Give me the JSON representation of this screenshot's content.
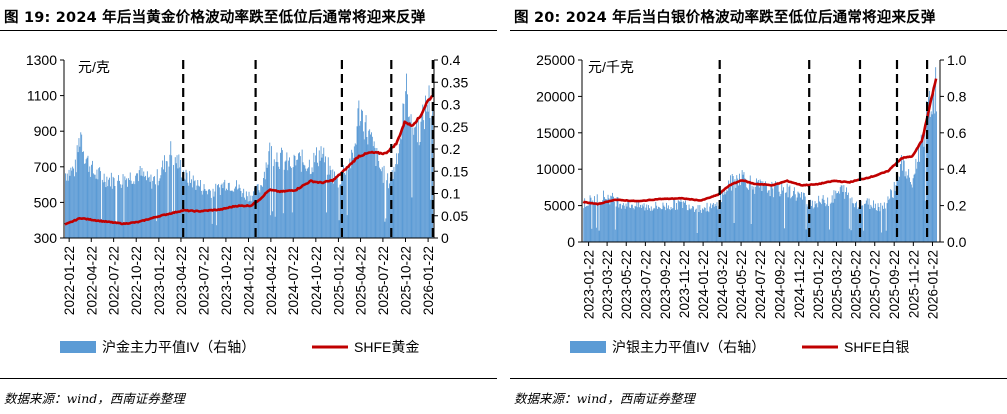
{
  "figures": [
    {
      "title": "图 19: 2024 年后当黄金价格波动率跌至低位后通常将迎来反弹",
      "source": "数据来源：wind，西南证券整理",
      "unit": "元/克",
      "legend": [
        "沪金主力平值IV（右轴）",
        "SHFE黄金"
      ],
      "colors": {
        "bar": "#5b9bd5",
        "line": "#c00000",
        "dash": "#000000"
      }
    },
    {
      "title": "图 20: 2024 年后当白银价格波动率跌至低位后通常将迎来反弹",
      "source": "数据来源：wind，西南证券整理",
      "unit": "元/千克",
      "legend": [
        "沪银主力平值IV（右轴）",
        "SHFE白银"
      ],
      "colors": {
        "bar": "#5b9bd5",
        "line": "#c00000",
        "dash": "#000000"
      }
    }
  ],
  "chart_data": [
    {
      "type": "bar+line",
      "title": "图 19: 2024 年后当黄金价格波动率跌至低位后通常将迎来反弹",
      "ylabel_left": "元/克",
      "ylim_left": [
        300,
        1300
      ],
      "yticks_left": [
        "300",
        "500",
        "700",
        "900",
        "1100",
        "1300"
      ],
      "ylim_right": [
        0,
        0.4
      ],
      "yticks_right": [
        "0",
        "0.05",
        "0.1",
        "0.15",
        "0.2",
        "0.25",
        "0.3",
        "0.35",
        "0.4"
      ],
      "date_range": [
        "2022-01-01",
        "2026-02-15"
      ],
      "xticks": [
        "2022-01-22",
        "2022-04-22",
        "2022-07-22",
        "2022-10-22",
        "2023-01-22",
        "2023-04-22",
        "2023-07-22",
        "2023-10-22",
        "2024-01-22",
        "2024-04-22",
        "2024-07-22",
        "2024-10-22",
        "2025-01-22",
        "2025-04-22",
        "2025-07-22",
        "2025-10-22",
        "2026-01-22"
      ],
      "series": [
        {
          "name": "沪金主力平值IV（右轴）",
          "type": "bar",
          "axis": "right",
          "points": [
            [
              "2022-01-05",
              0.15
            ],
            [
              "2022-02-15",
              0.16
            ],
            [
              "2022-03-08",
              0.25
            ],
            [
              "2022-03-25",
              0.19
            ],
            [
              "2022-05-01",
              0.15
            ],
            [
              "2022-06-15",
              0.14
            ],
            [
              "2022-08-01",
              0.13
            ],
            [
              "2022-09-15",
              0.14
            ],
            [
              "2022-11-01",
              0.15
            ],
            [
              "2022-12-15",
              0.13
            ],
            [
              "2023-01-15",
              0.14
            ],
            [
              "2023-03-10",
              0.2
            ],
            [
              "2023-04-15",
              0.17
            ],
            [
              "2023-05-10",
              0.14
            ],
            [
              "2023-06-15",
              0.13
            ],
            [
              "2023-08-01",
              0.11
            ],
            [
              "2023-09-15",
              0.11
            ],
            [
              "2023-10-20",
              0.13
            ],
            [
              "2023-12-01",
              0.12
            ],
            [
              "2024-01-10",
              0.1
            ],
            [
              "2024-02-10",
              0.1
            ],
            [
              "2024-03-10",
              0.12
            ],
            [
              "2024-04-15",
              0.2
            ],
            [
              "2024-05-20",
              0.19
            ],
            [
              "2024-07-01",
              0.17
            ],
            [
              "2024-08-15",
              0.18
            ],
            [
              "2024-10-01",
              0.17
            ],
            [
              "2024-11-10",
              0.2
            ],
            [
              "2024-12-20",
              0.15
            ],
            [
              "2025-01-22",
              0.13
            ],
            [
              "2025-02-20",
              0.17
            ],
            [
              "2025-03-20",
              0.18
            ],
            [
              "2025-04-15",
              0.3
            ],
            [
              "2025-05-10",
              0.26
            ],
            [
              "2025-06-10",
              0.21
            ],
            [
              "2025-07-10",
              0.16
            ],
            [
              "2025-08-10",
              0.13
            ],
            [
              "2025-09-01",
              0.15
            ],
            [
              "2025-10-01",
              0.24
            ],
            [
              "2025-10-25",
              0.34
            ],
            [
              "2025-11-20",
              0.26
            ],
            [
              "2025-12-20",
              0.25
            ],
            [
              "2026-01-20",
              0.32
            ],
            [
              "2026-02-10",
              0.3
            ]
          ]
        },
        {
          "name": "SHFE黄金",
          "type": "line",
          "axis": "left",
          "points": [
            [
              "2022-01-05",
              375
            ],
            [
              "2022-03-08",
              412
            ],
            [
              "2022-06-01",
              395
            ],
            [
              "2022-09-01",
              380
            ],
            [
              "2022-11-01",
              390
            ],
            [
              "2023-01-15",
              420
            ],
            [
              "2023-05-01",
              455
            ],
            [
              "2023-07-01",
              450
            ],
            [
              "2023-10-01",
              460
            ],
            [
              "2023-12-01",
              480
            ],
            [
              "2024-02-01",
              482
            ],
            [
              "2024-03-10",
              520
            ],
            [
              "2024-04-15",
              570
            ],
            [
              "2024-06-01",
              560
            ],
            [
              "2024-08-01",
              570
            ],
            [
              "2024-10-01",
              620
            ],
            [
              "2024-11-15",
              610
            ],
            [
              "2025-01-01",
              625
            ],
            [
              "2025-02-15",
              680
            ],
            [
              "2025-04-15",
              760
            ],
            [
              "2025-06-01",
              780
            ],
            [
              "2025-08-01",
              775
            ],
            [
              "2025-09-15",
              830
            ],
            [
              "2025-10-20",
              955
            ],
            [
              "2025-11-15",
              930
            ],
            [
              "2025-12-20",
              980
            ],
            [
              "2026-01-20",
              1070
            ],
            [
              "2026-02-10",
              1100
            ]
          ]
        }
      ],
      "dashed_markers": [
        "2023-05-01",
        "2024-02-20",
        "2025-02-05",
        "2025-08-25",
        "2026-02-10"
      ]
    },
    {
      "type": "bar+line",
      "title": "图 20: 2024 年后当白银价格波动率跌至低位后通常将迎来反弹",
      "ylabel_left": "元/千克",
      "ylim_left": [
        0,
        25000
      ],
      "yticks_left": [
        "0",
        "5000",
        "10000",
        "15000",
        "20000",
        "25000"
      ],
      "ylim_right": [
        0,
        1.0
      ],
      "yticks_right": [
        "0.0",
        "0.2",
        "0.4",
        "0.6",
        "0.8",
        "1.0"
      ],
      "date_range": [
        "2023-01-01",
        "2026-02-15"
      ],
      "xticks": [
        "2023-01-22",
        "2023-03-22",
        "2023-05-22",
        "2023-07-22",
        "2023-09-22",
        "2023-11-22",
        "2024-01-22",
        "2024-03-22",
        "2024-05-22",
        "2024-07-22",
        "2024-09-22",
        "2024-11-22",
        "2025-01-22",
        "2025-03-22",
        "2025-05-22",
        "2025-07-22",
        "2025-09-22",
        "2025-11-22",
        "2026-01-22"
      ],
      "series": [
        {
          "name": "沪银主力平值IV（右轴）",
          "type": "bar",
          "axis": "right",
          "points": [
            [
              "2023-01-05",
              0.22
            ],
            [
              "2023-03-15",
              0.26
            ],
            [
              "2023-05-10",
              0.22
            ],
            [
              "2023-07-15",
              0.2
            ],
            [
              "2023-09-15",
              0.2
            ],
            [
              "2023-11-15",
              0.22
            ],
            [
              "2024-01-15",
              0.19
            ],
            [
              "2024-03-01",
              0.2
            ],
            [
              "2024-04-10",
              0.32
            ],
            [
              "2024-05-20",
              0.38
            ],
            [
              "2024-07-01",
              0.32
            ],
            [
              "2024-08-15",
              0.3
            ],
            [
              "2024-10-01",
              0.3
            ],
            [
              "2024-11-15",
              0.27
            ],
            [
              "2025-01-01",
              0.22
            ],
            [
              "2025-03-01",
              0.24
            ],
            [
              "2025-04-10",
              0.3
            ],
            [
              "2025-05-15",
              0.22
            ],
            [
              "2025-07-01",
              0.22
            ],
            [
              "2025-08-15",
              0.2
            ],
            [
              "2025-09-15",
              0.28
            ],
            [
              "2025-10-15",
              0.45
            ],
            [
              "2025-11-15",
              0.32
            ],
            [
              "2025-12-20",
              0.6
            ],
            [
              "2026-01-15",
              0.8
            ],
            [
              "2026-02-05",
              0.88
            ]
          ]
        },
        {
          "name": "SHFE白银",
          "type": "line",
          "axis": "left",
          "points": [
            [
              "2023-01-05",
              5500
            ],
            [
              "2023-02-20",
              5200
            ],
            [
              "2023-04-15",
              5800
            ],
            [
              "2023-07-01",
              5600
            ],
            [
              "2023-09-01",
              5900
            ],
            [
              "2023-11-15",
              6000
            ],
            [
              "2024-01-15",
              5700
            ],
            [
              "2024-03-10",
              6500
            ],
            [
              "2024-04-15",
              7800
            ],
            [
              "2024-05-25",
              8500
            ],
            [
              "2024-07-01",
              8000
            ],
            [
              "2024-09-01",
              7800
            ],
            [
              "2024-10-15",
              8400
            ],
            [
              "2024-12-01",
              7800
            ],
            [
              "2025-01-15",
              7900
            ],
            [
              "2025-03-15",
              8400
            ],
            [
              "2025-05-01",
              8200
            ],
            [
              "2025-07-15",
              9000
            ],
            [
              "2025-09-01",
              9700
            ],
            [
              "2025-10-15",
              11500
            ],
            [
              "2025-11-20",
              11800
            ],
            [
              "2025-12-20",
              14000
            ],
            [
              "2026-01-15",
              19000
            ],
            [
              "2026-02-05",
              23000
            ]
          ]
        }
      ],
      "dashed_markers": [
        "2024-03-15",
        "2024-12-25",
        "2025-06-05",
        "2025-10-01",
        "2026-01-05"
      ]
    }
  ]
}
